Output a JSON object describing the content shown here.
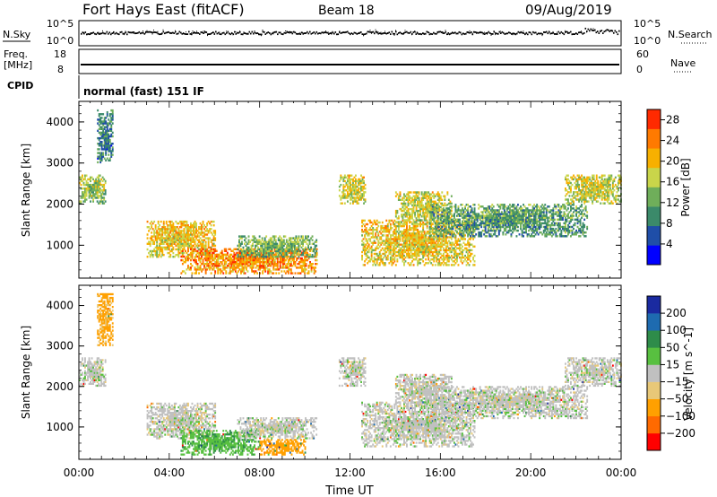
{
  "header": {
    "station": "Fort Hays East (fitACF)",
    "beam": "Beam 18",
    "date": "09/Aug/2019"
  },
  "noise_panel": {
    "left_label": "N.Sky",
    "right_label": "N.Search",
    "left_ticks": [
      "10^5",
      "10^0"
    ],
    "right_ticks": [
      "10^5",
      "10^0"
    ]
  },
  "freq_panel": {
    "label_line1": "Freq.",
    "label_line2": "[MHz]",
    "left_ticks": [
      "18",
      "8"
    ],
    "right_label": "Nave",
    "right_ticks": [
      "60",
      "0"
    ]
  },
  "cpid": {
    "label": "CPID",
    "text": "normal (fast) 151 IF"
  },
  "colors": {
    "power_scale": [
      "#0000ff",
      "#1f4ea8",
      "#3b8a6a",
      "#6fae5a",
      "#c9d54a",
      "#f7b000",
      "#ff7a00",
      "#ff2a00"
    ],
    "velocity_scale": [
      "#ff0000",
      "#ff6a00",
      "#ffa000",
      "#e8c878",
      "#c0c0c0",
      "#58c040",
      "#2e8c4a",
      "#1e6bb0",
      "#1a2aa0"
    ]
  },
  "chart_data": [
    {
      "type": "heatmap",
      "quantity": "Power",
      "ylabel": "Slant Range [km]",
      "yticks": [
        "1000",
        "2000",
        "3000",
        "4000"
      ],
      "ylim": [
        200,
        4500
      ],
      "xlim_hours": [
        0,
        24
      ],
      "colorbar": {
        "label": "Power [dB]",
        "ticks": [
          "4",
          "8",
          "12",
          "16",
          "20",
          "24",
          "28"
        ],
        "range": [
          0,
          30
        ]
      },
      "echo_regions": [
        {
          "t_start_h": 0.0,
          "t_end_h": 1.2,
          "range_km": [
            2000,
            2700
          ],
          "power_db": 16
        },
        {
          "t_start_h": 0.8,
          "t_end_h": 1.5,
          "range_km": [
            3000,
            4300
          ],
          "power_db": 10
        },
        {
          "t_start_h": 3.0,
          "t_end_h": 6.0,
          "range_km": [
            700,
            1600
          ],
          "power_db": 20
        },
        {
          "t_start_h": 4.5,
          "t_end_h": 10.5,
          "range_km": [
            300,
            900
          ],
          "power_db": 24
        },
        {
          "t_start_h": 7.0,
          "t_end_h": 10.5,
          "range_km": [
            700,
            1200
          ],
          "power_db": 14
        },
        {
          "t_start_h": 11.5,
          "t_end_h": 12.7,
          "range_km": [
            2000,
            2700
          ],
          "power_db": 18
        },
        {
          "t_start_h": 12.5,
          "t_end_h": 17.5,
          "range_km": [
            500,
            1600
          ],
          "power_db": 20
        },
        {
          "t_start_h": 14.0,
          "t_end_h": 16.5,
          "range_km": [
            1500,
            2300
          ],
          "power_db": 18
        },
        {
          "t_start_h": 15.5,
          "t_end_h": 22.5,
          "range_km": [
            1200,
            2000
          ],
          "power_db": 12
        },
        {
          "t_start_h": 21.5,
          "t_end_h": 24.0,
          "range_km": [
            2000,
            2700
          ],
          "power_db": 18
        }
      ]
    },
    {
      "type": "heatmap",
      "quantity": "Velocity",
      "ylabel": "Slant Range [km]",
      "yticks": [
        "1000",
        "2000",
        "3000",
        "4000"
      ],
      "ylim": [
        200,
        4500
      ],
      "xlabel": "Time UT",
      "xticks": [
        "00:00",
        "04:00",
        "08:00",
        "12:00",
        "16:00",
        "20:00",
        "00:00"
      ],
      "xlim_hours": [
        0,
        24
      ],
      "colorbar": {
        "label": "Velocity [m s^-1]",
        "ticks": [
          "200",
          "100",
          "50",
          "15",
          "−15",
          "−50",
          "−100",
          "−200"
        ],
        "range": [
          -250,
          250
        ]
      },
      "echo_regions": [
        {
          "t_start_h": 0.0,
          "t_end_h": 1.2,
          "range_km": [
            2000,
            2700
          ],
          "velocity_ms": 0
        },
        {
          "t_start_h": 0.8,
          "t_end_h": 1.5,
          "range_km": [
            3000,
            4300
          ],
          "velocity_ms": -60
        },
        {
          "t_start_h": 3.0,
          "t_end_h": 6.0,
          "range_km": [
            700,
            1600
          ],
          "velocity_ms": 0
        },
        {
          "t_start_h": 4.5,
          "t_end_h": 8.0,
          "range_km": [
            300,
            900
          ],
          "velocity_ms": 40
        },
        {
          "t_start_h": 8.0,
          "t_end_h": 10.0,
          "range_km": [
            300,
            700
          ],
          "velocity_ms": -80
        },
        {
          "t_start_h": 7.0,
          "t_end_h": 10.5,
          "range_km": [
            700,
            1200
          ],
          "velocity_ms": 0
        },
        {
          "t_start_h": 11.5,
          "t_end_h": 12.7,
          "range_km": [
            2000,
            2700
          ],
          "velocity_ms": 0
        },
        {
          "t_start_h": 12.5,
          "t_end_h": 17.5,
          "range_km": [
            500,
            1600
          ],
          "velocity_ms": 0
        },
        {
          "t_start_h": 14.0,
          "t_end_h": 16.5,
          "range_km": [
            1500,
            2300
          ],
          "velocity_ms": 0
        },
        {
          "t_start_h": 15.5,
          "t_end_h": 22.5,
          "range_km": [
            1200,
            2000
          ],
          "velocity_ms": 0
        },
        {
          "t_start_h": 21.5,
          "t_end_h": 24.0,
          "range_km": [
            2000,
            2700
          ],
          "velocity_ms": 0
        }
      ]
    }
  ]
}
